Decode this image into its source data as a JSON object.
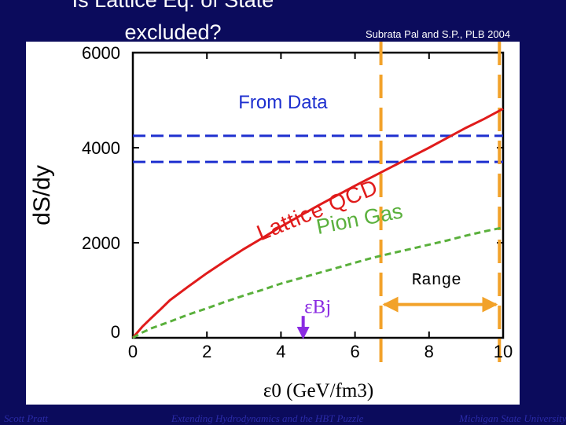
{
  "slide": {
    "title_line1": "Is Lattice Eq. of State",
    "title_line2": "excluded?",
    "citation": "Subrata Pal and S.P., PLB 2004",
    "footer_left": "Scott Pratt",
    "footer_center": "Extending Hydrodynamics and the HBT Puzzle",
    "footer_right": "Michigan State University"
  },
  "colors": {
    "background": "#0b0b5c",
    "lattice": "#e01b1b",
    "pion_gas": "#5ab03c",
    "data_lines": "#1d2fcf",
    "range_markers": "#f2a22a",
    "arrow_bj": "#8a2be2"
  },
  "chart_data": {
    "type": "line",
    "xlabel": "ε0 (GeV/fm3)",
    "ylabel": "dS/dy",
    "xlim": [
      0,
      10
    ],
    "ylim": [
      0,
      6000
    ],
    "x_ticks": [
      "0",
      "2",
      "4",
      "6",
      "8",
      "10"
    ],
    "y_ticks": [
      "0",
      "2000",
      "4000",
      "6000"
    ],
    "series": [
      {
        "name": "Lattice QCD",
        "style": "solid",
        "color": "#e01b1b",
        "points": [
          [
            0,
            0
          ],
          [
            0.25,
            230
          ],
          [
            0.5,
            420
          ],
          [
            0.75,
            600
          ],
          [
            1,
            790
          ],
          [
            1.5,
            1080
          ],
          [
            2,
            1360
          ],
          [
            2.5,
            1620
          ],
          [
            3,
            1870
          ],
          [
            3.5,
            2100
          ],
          [
            4,
            2340
          ],
          [
            4.5,
            2560
          ],
          [
            5,
            2780
          ],
          [
            5.5,
            2990
          ],
          [
            6,
            3200
          ],
          [
            6.5,
            3400
          ],
          [
            7,
            3600
          ],
          [
            7.5,
            3800
          ],
          [
            8,
            4000
          ],
          [
            8.5,
            4210
          ],
          [
            9,
            4420
          ],
          [
            9.5,
            4610
          ],
          [
            10,
            4820
          ]
        ]
      },
      {
        "name": "Pion Gas",
        "style": "dashed",
        "color": "#5ab03c",
        "points": [
          [
            0,
            0
          ],
          [
            0.25,
            110
          ],
          [
            0.5,
            200
          ],
          [
            1,
            340
          ],
          [
            1.5,
            490
          ],
          [
            2,
            620
          ],
          [
            2.5,
            760
          ],
          [
            3,
            890
          ],
          [
            3.5,
            1010
          ],
          [
            4,
            1140
          ],
          [
            4.5,
            1250
          ],
          [
            5,
            1360
          ],
          [
            5.5,
            1470
          ],
          [
            6,
            1580
          ],
          [
            6.5,
            1690
          ],
          [
            7,
            1780
          ],
          [
            7.5,
            1870
          ],
          [
            8,
            1960
          ],
          [
            8.5,
            2050
          ],
          [
            9,
            2150
          ],
          [
            9.5,
            2240
          ],
          [
            10,
            2320
          ]
        ]
      }
    ],
    "hlines": [
      {
        "name": "data_upper",
        "y": 4250,
        "color": "#1d2fcf"
      },
      {
        "name": "data_lower",
        "y": 3700,
        "color": "#1d2fcf"
      }
    ],
    "vlines": [
      {
        "name": "range_min",
        "x": 6.7
      },
      {
        "name": "range_max",
        "x": 9.9
      }
    ],
    "range": {
      "from": 6.7,
      "to": 9.9,
      "y": 700
    },
    "bj_marker": {
      "x": 4.6
    },
    "annotations": {
      "from_data": "From Data",
      "lattice_qcd": "Lattice QCD",
      "pion_gas": "Pion Gas",
      "range": "Range",
      "eps_bj": "εBj"
    }
  }
}
